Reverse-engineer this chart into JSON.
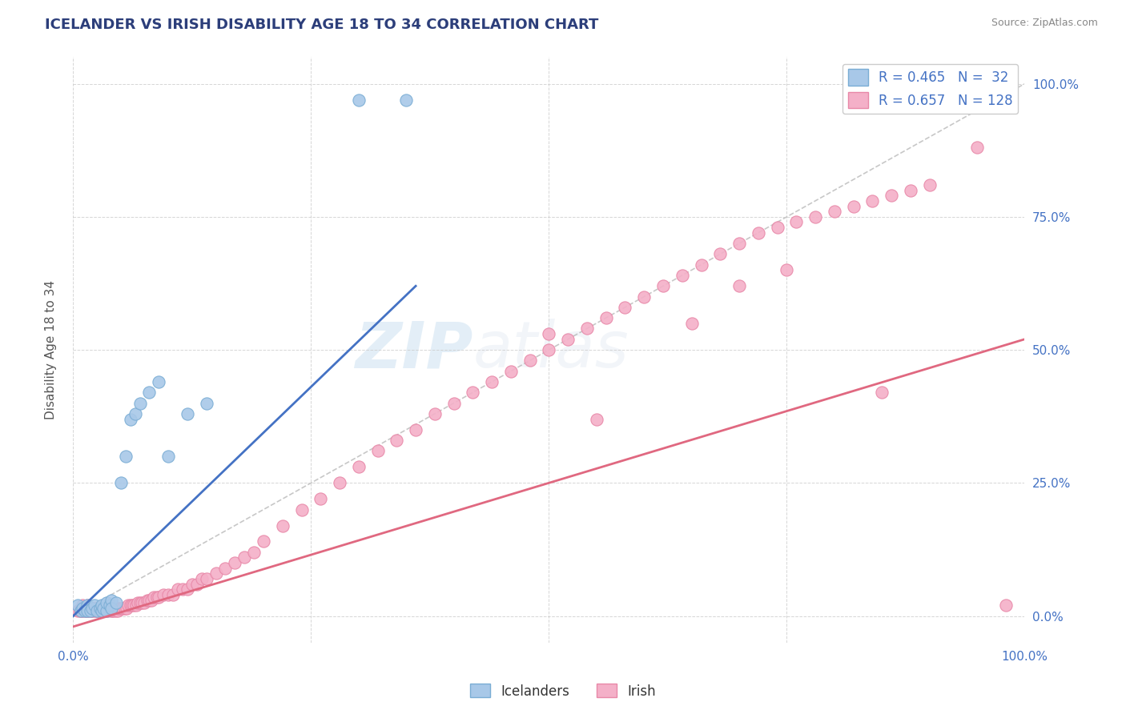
{
  "title": "ICELANDER VS IRISH DISABILITY AGE 18 TO 34 CORRELATION CHART",
  "source": "Source: ZipAtlas.com",
  "ylabel": "Disability Age 18 to 34",
  "xlim": [
    0,
    1
  ],
  "ylim": [
    -0.05,
    1.05
  ],
  "watermark": "ZIPatlas",
  "background_color": "#ffffff",
  "grid_color": "#cccccc",
  "title_color": "#2c3e7a",
  "axis_color": "#4472c4",
  "icelander_color": "#a8c8e8",
  "irish_color": "#f4b0c8",
  "icelander_edge": "#7aadd4",
  "irish_edge": "#e888a8",
  "blue_line_color": "#4472c4",
  "pink_line_color": "#e06880",
  "diag_line_color": "#b0b0b0",
  "icelander_points_x": [
    0.005,
    0.008,
    0.01,
    0.012,
    0.015,
    0.015,
    0.018,
    0.02,
    0.022,
    0.025,
    0.028,
    0.03,
    0.03,
    0.032,
    0.035,
    0.035,
    0.038,
    0.04,
    0.04,
    0.045,
    0.05,
    0.055,
    0.06,
    0.065,
    0.07,
    0.08,
    0.09,
    0.1,
    0.12,
    0.14,
    0.3,
    0.35
  ],
  "icelander_points_y": [
    0.02,
    0.01,
    0.015,
    0.01,
    0.02,
    0.01,
    0.01,
    0.015,
    0.02,
    0.01,
    0.015,
    0.01,
    0.02,
    0.015,
    0.01,
    0.025,
    0.02,
    0.03,
    0.015,
    0.025,
    0.25,
    0.3,
    0.37,
    0.38,
    0.4,
    0.42,
    0.44,
    0.3,
    0.38,
    0.4,
    0.97,
    0.97
  ],
  "irish_points_x": [
    0.005,
    0.007,
    0.008,
    0.009,
    0.01,
    0.01,
    0.01,
    0.012,
    0.012,
    0.013,
    0.014,
    0.015,
    0.015,
    0.015,
    0.016,
    0.017,
    0.018,
    0.018,
    0.019,
    0.02,
    0.02,
    0.022,
    0.022,
    0.023,
    0.024,
    0.025,
    0.025,
    0.026,
    0.027,
    0.028,
    0.03,
    0.03,
    0.031,
    0.032,
    0.033,
    0.034,
    0.035,
    0.036,
    0.037,
    0.038,
    0.04,
    0.04,
    0.041,
    0.042,
    0.043,
    0.044,
    0.045,
    0.046,
    0.047,
    0.048,
    0.05,
    0.052,
    0.054,
    0.056,
    0.058,
    0.06,
    0.062,
    0.064,
    0.066,
    0.068,
    0.07,
    0.072,
    0.075,
    0.078,
    0.08,
    0.082,
    0.085,
    0.088,
    0.09,
    0.095,
    0.1,
    0.105,
    0.11,
    0.115,
    0.12,
    0.125,
    0.13,
    0.135,
    0.14,
    0.15,
    0.16,
    0.17,
    0.18,
    0.19,
    0.2,
    0.22,
    0.24,
    0.26,
    0.28,
    0.3,
    0.32,
    0.34,
    0.36,
    0.38,
    0.4,
    0.42,
    0.44,
    0.46,
    0.48,
    0.5,
    0.52,
    0.54,
    0.56,
    0.58,
    0.6,
    0.62,
    0.64,
    0.66,
    0.68,
    0.7,
    0.72,
    0.74,
    0.76,
    0.78,
    0.8,
    0.82,
    0.84,
    0.86,
    0.88,
    0.9,
    0.55,
    0.65,
    0.7,
    0.75,
    0.85,
    0.95,
    0.98,
    0.5
  ],
  "irish_points_y": [
    0.01,
    0.01,
    0.01,
    0.01,
    0.01,
    0.015,
    0.02,
    0.01,
    0.015,
    0.01,
    0.01,
    0.01,
    0.015,
    0.02,
    0.01,
    0.015,
    0.01,
    0.015,
    0.01,
    0.01,
    0.015,
    0.01,
    0.015,
    0.01,
    0.015,
    0.01,
    0.015,
    0.01,
    0.015,
    0.01,
    0.01,
    0.015,
    0.01,
    0.015,
    0.01,
    0.015,
    0.01,
    0.015,
    0.01,
    0.015,
    0.01,
    0.015,
    0.01,
    0.015,
    0.01,
    0.015,
    0.01,
    0.015,
    0.01,
    0.015,
    0.015,
    0.015,
    0.015,
    0.015,
    0.02,
    0.02,
    0.02,
    0.02,
    0.02,
    0.025,
    0.025,
    0.025,
    0.025,
    0.03,
    0.03,
    0.03,
    0.035,
    0.035,
    0.035,
    0.04,
    0.04,
    0.04,
    0.05,
    0.05,
    0.05,
    0.06,
    0.06,
    0.07,
    0.07,
    0.08,
    0.09,
    0.1,
    0.11,
    0.12,
    0.14,
    0.17,
    0.2,
    0.22,
    0.25,
    0.28,
    0.31,
    0.33,
    0.35,
    0.38,
    0.4,
    0.42,
    0.44,
    0.46,
    0.48,
    0.5,
    0.52,
    0.54,
    0.56,
    0.58,
    0.6,
    0.62,
    0.64,
    0.66,
    0.68,
    0.7,
    0.72,
    0.73,
    0.74,
    0.75,
    0.76,
    0.77,
    0.78,
    0.79,
    0.8,
    0.81,
    0.37,
    0.55,
    0.62,
    0.65,
    0.42,
    0.88,
    0.02,
    0.53
  ],
  "blue_line_x": [
    0.0,
    0.36
  ],
  "blue_line_y": [
    0.0,
    0.62
  ],
  "pink_line_x": [
    0.0,
    1.0
  ],
  "pink_line_y": [
    -0.02,
    0.52
  ]
}
